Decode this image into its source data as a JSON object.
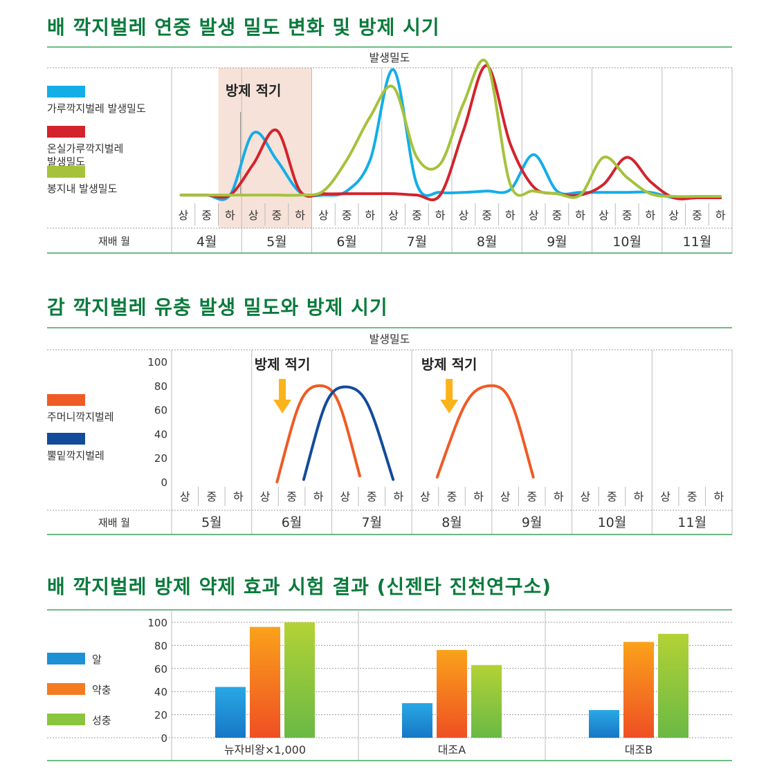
{
  "charts": [
    {
      "title": "배 깍지벌레 연중 발생 밀도 변화 및 방제 시기",
      "header": "발생밀도",
      "row_label": "재배 월",
      "control_label": "방제 적기",
      "period_labels": [
        "상",
        "중",
        "하"
      ],
      "months": [
        "4월",
        "5월",
        "6월",
        "7월",
        "8월",
        "9월",
        "10월",
        "11월"
      ],
      "legend": [
        {
          "label": "가루깍지벌레 발생밀도",
          "color": "#14ade8"
        },
        {
          "label": "온실가루깍지벌레\n발생밀도",
          "color": "#d3232c"
        },
        {
          "label": "봉지내 발생밀도",
          "color": "#a5c23b"
        }
      ]
    },
    {
      "title": "감 깍지벌레 유충 발생 밀도와 방제 시기",
      "header": "발생밀도",
      "row_label": "재배 월",
      "control_label": "방제 적기",
      "period_labels": [
        "상",
        "중",
        "하"
      ],
      "months": [
        "5월",
        "6월",
        "7월",
        "8월",
        "9월",
        "10월",
        "11월"
      ],
      "y_ticks": [
        "100",
        "80",
        "60",
        "40",
        "20",
        "0"
      ],
      "legend": [
        {
          "label": "주머니깍지벌레",
          "color": "#ef5b24"
        },
        {
          "label": "뿔밑깍지벌레",
          "color": "#134a9c"
        }
      ]
    },
    {
      "title": "배 깍지벌레 방제 약제 효과 시험 결과 (신젠타 진천연구소)",
      "y_ticks": [
        "100",
        "80",
        "60",
        "40",
        "20",
        "0"
      ],
      "legend": [
        {
          "label": "알",
          "color": "#1e90d6"
        },
        {
          "label": "약충",
          "color": "#f47b20"
        },
        {
          "label": "성충",
          "color": "#8bc53f"
        }
      ]
    }
  ],
  "chart_data": [
    {
      "type": "line",
      "title": "배 깍지벌레 연중 발생 밀도 변화 및 방제 시기",
      "ylabel": "발생밀도",
      "xlabel": "재배 월",
      "categories": [
        "4월 상",
        "4월 중",
        "4월 하",
        "5월 상",
        "5월 중",
        "5월 하",
        "6월 상",
        "6월 중",
        "6월 하",
        "7월 상",
        "7월 중",
        "7월 하",
        "8월 상",
        "8월 중",
        "8월 하",
        "9월 상",
        "9월 중",
        "9월 하",
        "10월 상",
        "10월 중",
        "10월 하",
        "11월 상",
        "11월 중",
        "11월 하"
      ],
      "control_window": [
        "4월 하",
        "5월 하"
      ],
      "series": [
        {
          "name": "가루깍지벌레 발생밀도",
          "color": "#14ade8",
          "values": [
            2,
            2,
            2,
            48,
            28,
            4,
            2,
            5,
            28,
            95,
            10,
            4,
            4,
            5,
            6,
            32,
            5,
            4,
            4,
            4,
            4,
            0,
            0,
            0
          ]
        },
        {
          "name": "온실가루깍지벌레 발생밀도",
          "color": "#d3232c",
          "values": [
            2,
            2,
            2,
            25,
            50,
            5,
            3,
            3,
            3,
            3,
            2,
            2,
            50,
            98,
            40,
            8,
            3,
            2,
            10,
            30,
            12,
            0,
            0,
            0
          ]
        },
        {
          "name": "봉지내 발생밀도",
          "color": "#a5c23b",
          "values": [
            2,
            2,
            2,
            2,
            2,
            2,
            5,
            28,
            60,
            82,
            30,
            25,
            70,
            100,
            10,
            5,
            3,
            2,
            30,
            15,
            3,
            1,
            1,
            1
          ]
        }
      ]
    },
    {
      "type": "line",
      "title": "감 깍지벌레 유충 발생 밀도와 방제 시기",
      "ylabel": "발생밀도",
      "xlabel": "재배 월",
      "ylim": [
        0,
        100
      ],
      "categories": [
        "5월 상",
        "5월 중",
        "5월 하",
        "6월 상",
        "6월 중",
        "6월 하",
        "7월 상",
        "7월 중",
        "7월 하",
        "8월 상",
        "8월 중",
        "8월 하",
        "9월 상",
        "9월 중",
        "9월 하",
        "10월 상",
        "10월 중",
        "10월 하",
        "11월 상",
        "11월 중",
        "11월 하"
      ],
      "control_points": [
        4.15,
        10.4
      ],
      "series": [
        {
          "name": "주머니깍지벌레",
          "color": "#ef5b24",
          "segments": [
            {
              "x": [
                3.95,
                5.55,
                7.05
              ],
              "y": [
                0,
                80,
                5
              ]
            },
            {
              "x": [
                9.95,
                12.0,
                13.55
              ],
              "y": [
                4,
                80,
                4
              ]
            }
          ]
        },
        {
          "name": "뿔밑깍지벌레",
          "color": "#134a9c",
          "segments": [
            {
              "x": [
                4.95,
                6.5,
                8.3
              ],
              "y": [
                2,
                79,
                2
              ]
            }
          ]
        }
      ]
    },
    {
      "type": "bar",
      "title": "배 깍지벌레 방제 약제 효과 시험 결과 (신젠타 진천연구소)",
      "categories": [
        "뉴자비왕×1,000",
        "대조A",
        "대조B"
      ],
      "ylim": [
        0,
        100
      ],
      "series": [
        {
          "name": "알",
          "values": [
            44,
            30,
            24
          ]
        },
        {
          "name": "약충",
          "values": [
            96,
            76,
            83
          ]
        },
        {
          "name": "성충",
          "values": [
            100,
            63,
            90
          ]
        }
      ]
    }
  ]
}
